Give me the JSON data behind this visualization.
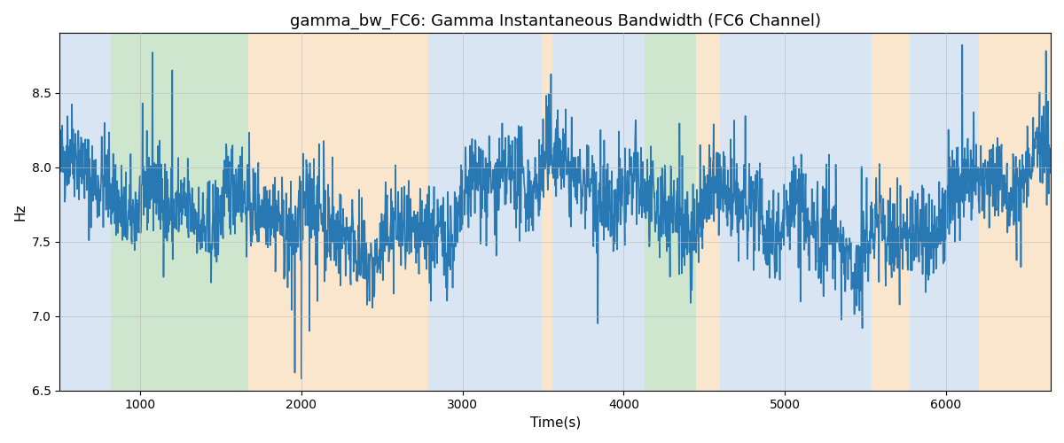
{
  "title": "gamma_bw_FC6: Gamma Instantaneous Bandwidth (FC6 Channel)",
  "xlabel": "Time(s)",
  "ylabel": "Hz",
  "ylim": [
    6.5,
    8.9
  ],
  "xlim": [
    500,
    6650
  ],
  "bg_bands": [
    {
      "xmin": 500,
      "xmax": 820,
      "color": "#aec6e8",
      "alpha": 0.45
    },
    {
      "xmin": 820,
      "xmax": 1670,
      "color": "#90c990",
      "alpha": 0.45
    },
    {
      "xmin": 1670,
      "xmax": 2785,
      "color": "#f5c990",
      "alpha": 0.45
    },
    {
      "xmin": 2785,
      "xmax": 3490,
      "color": "#aec6e8",
      "alpha": 0.45
    },
    {
      "xmin": 3490,
      "xmax": 3560,
      "color": "#f5c990",
      "alpha": 0.45
    },
    {
      "xmin": 3560,
      "xmax": 3780,
      "color": "#aec6e8",
      "alpha": 0.45
    },
    {
      "xmin": 3780,
      "xmax": 3900,
      "color": "#aec6e8",
      "alpha": 0.45
    },
    {
      "xmin": 3900,
      "xmax": 4130,
      "color": "#aec6e8",
      "alpha": 0.45
    },
    {
      "xmin": 4130,
      "xmax": 4450,
      "color": "#90c990",
      "alpha": 0.45
    },
    {
      "xmin": 4450,
      "xmax": 4600,
      "color": "#f5c990",
      "alpha": 0.45
    },
    {
      "xmin": 4600,
      "xmax": 5540,
      "color": "#aec6e8",
      "alpha": 0.45
    },
    {
      "xmin": 5540,
      "xmax": 5775,
      "color": "#f5c990",
      "alpha": 0.45
    },
    {
      "xmin": 5775,
      "xmax": 6205,
      "color": "#aec6e8",
      "alpha": 0.45
    },
    {
      "xmin": 6205,
      "xmax": 6650,
      "color": "#f5c990",
      "alpha": 0.45
    }
  ],
  "line_color": "#2878b4",
  "line_width": 1.2,
  "grid_color": "#bbbbbb",
  "grid_alpha": 0.7,
  "title_fontsize": 13,
  "seed": 42,
  "xticks": [
    1000,
    2000,
    3000,
    4000,
    5000,
    6000
  ],
  "yticks": [
    6.5,
    7.0,
    7.5,
    8.0,
    8.5
  ]
}
